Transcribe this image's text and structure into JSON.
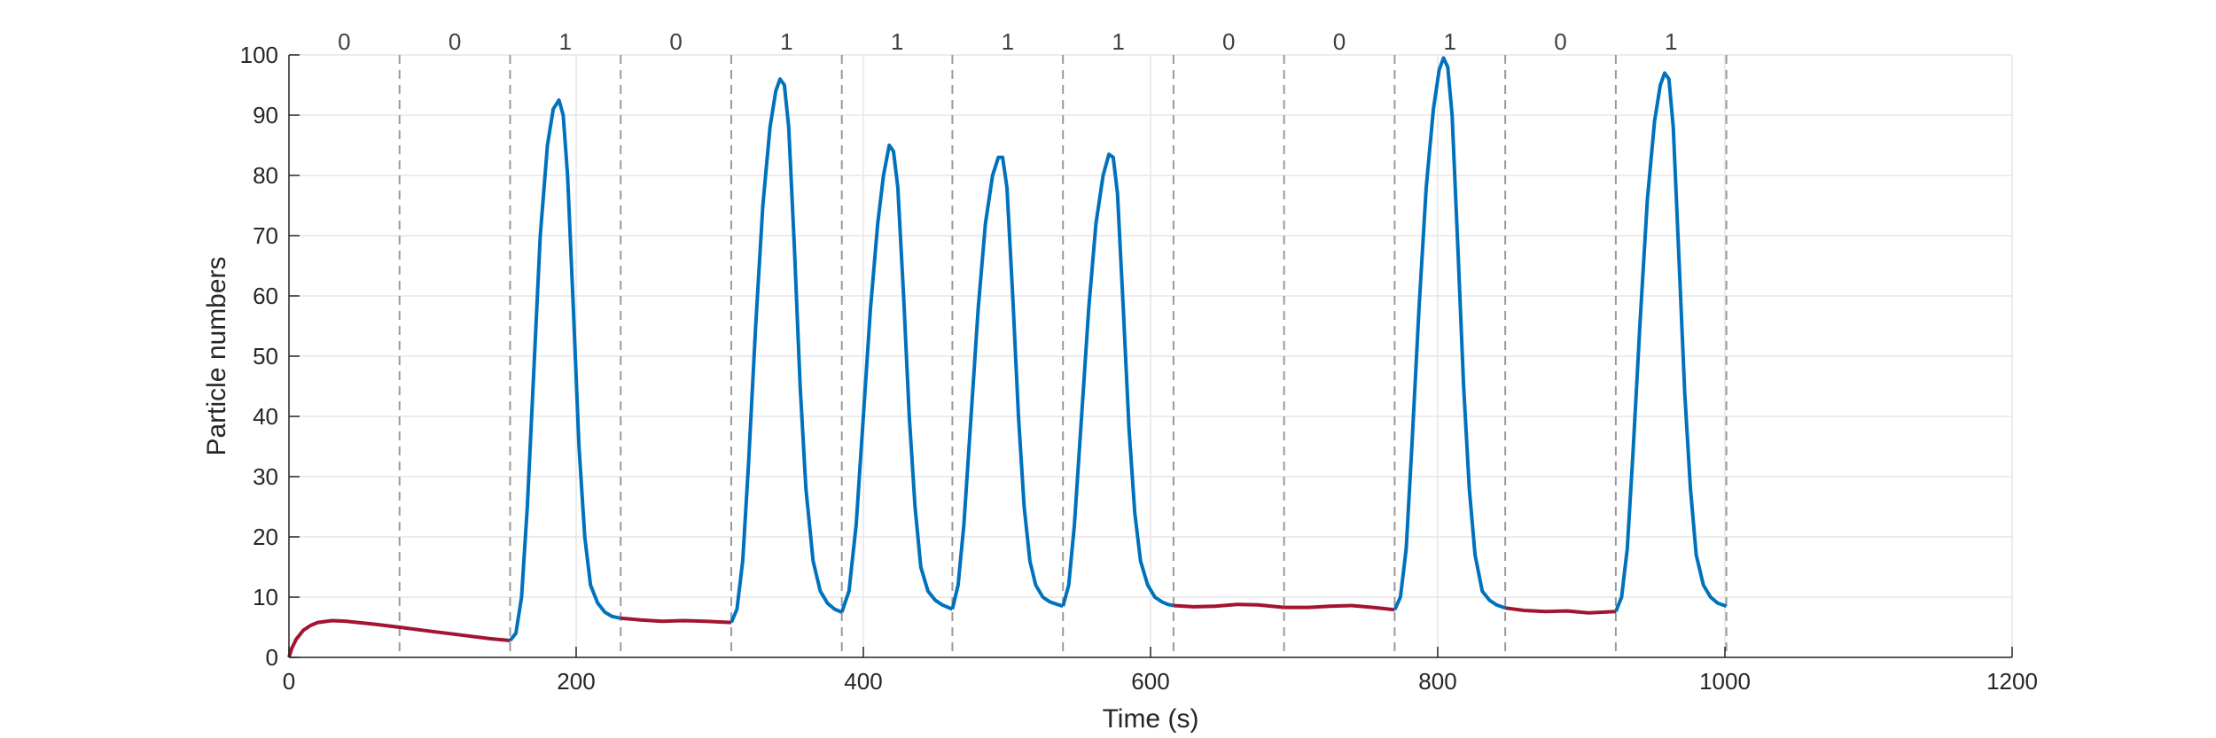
{
  "chart_data": {
    "type": "line",
    "title": "",
    "xlabel": "Time (s)",
    "ylabel": "Particle numbers",
    "xlim": [
      0,
      1200
    ],
    "ylim": [
      0,
      100
    ],
    "xticks": [
      0,
      200,
      400,
      600,
      800,
      1000,
      1200
    ],
    "yticks": [
      0,
      10,
      20,
      30,
      40,
      50,
      60,
      70,
      80,
      90,
      100
    ],
    "grid": true,
    "legend": "none",
    "colors": {
      "bit0": "#A2142F",
      "bit1": "#0072BD",
      "separator": "#9a9a9a"
    },
    "segment_boundaries": [
      0,
      77,
      154,
      231,
      308,
      385,
      462,
      539,
      616,
      693,
      770,
      847,
      924,
      1001
    ],
    "bits": [
      "0",
      "0",
      "1",
      "0",
      "1",
      "1",
      "1",
      "1",
      "0",
      "0",
      "1",
      "0",
      "1"
    ],
    "series": [
      {
        "bit": "0",
        "x": [
          0,
          2,
          5,
          10,
          15,
          20,
          30,
          40,
          60,
          77,
          100,
          120,
          140,
          154
        ],
        "y": [
          0,
          1.5,
          3,
          4.5,
          5.3,
          5.8,
          6.1,
          6.0,
          5.5,
          5.0,
          4.3,
          3.7,
          3.1,
          2.8
        ]
      },
      {
        "bit": "1",
        "x": [
          154,
          158,
          162,
          166,
          170,
          175,
          180,
          184,
          188,
          191,
          194,
          198,
          202,
          206,
          210,
          215,
          220,
          225,
          231
        ],
        "y": [
          2.8,
          4,
          10,
          25,
          45,
          70,
          85,
          91,
          92.5,
          90,
          80,
          58,
          35,
          20,
          12,
          9,
          7.5,
          6.8,
          6.5
        ]
      },
      {
        "bit": "0",
        "x": [
          231,
          245,
          260,
          275,
          290,
          308
        ],
        "y": [
          6.5,
          6.2,
          6.0,
          6.1,
          6.0,
          5.8
        ]
      },
      {
        "bit": "1",
        "x": [
          308,
          312,
          316,
          320,
          325,
          330,
          335,
          339,
          342,
          345,
          348,
          352,
          356,
          360,
          365,
          370,
          375,
          380,
          385
        ],
        "y": [
          5.8,
          8,
          16,
          32,
          55,
          75,
          88,
          94,
          96,
          95,
          88,
          68,
          45,
          28,
          16,
          11,
          9,
          8,
          7.5
        ]
      },
      {
        "bit": "1",
        "x": [
          385,
          390,
          395,
          400,
          405,
          410,
          414,
          418,
          421,
          424,
          428,
          432,
          436,
          440,
          445,
          450,
          455,
          462
        ],
        "y": [
          7.5,
          11,
          22,
          40,
          58,
          72,
          80,
          85,
          84,
          78,
          60,
          40,
          25,
          15,
          11,
          9.5,
          8.7,
          8
        ]
      },
      {
        "bit": "1",
        "x": [
          462,
          466,
          470,
          475,
          480,
          485,
          490,
          494,
          497,
          500,
          504,
          508,
          512,
          516,
          520,
          525,
          530,
          535,
          539
        ],
        "y": [
          8,
          12,
          22,
          40,
          58,
          72,
          80,
          83,
          83,
          78,
          60,
          40,
          25,
          16,
          12,
          10,
          9.2,
          8.8,
          8.5
        ]
      },
      {
        "bit": "1",
        "x": [
          539,
          543,
          547,
          552,
          557,
          562,
          567,
          571,
          574,
          577,
          581,
          585,
          589,
          593,
          598,
          603,
          608,
          612,
          616
        ],
        "y": [
          8.5,
          12,
          22,
          40,
          58,
          72,
          80,
          83.5,
          83,
          77,
          58,
          38,
          24,
          16,
          12,
          10,
          9.2,
          8.8,
          8.6
        ]
      },
      {
        "bit": "0",
        "x": [
          616,
          630,
          645,
          660,
          675,
          693
        ],
        "y": [
          8.6,
          8.4,
          8.5,
          8.8,
          8.7,
          8.3
        ]
      },
      {
        "bit": "0",
        "x": [
          693,
          710,
          725,
          740,
          755,
          770
        ],
        "y": [
          8.3,
          8.3,
          8.5,
          8.6,
          8.3,
          7.9
        ]
      },
      {
        "bit": "1",
        "x": [
          770,
          774,
          778,
          782,
          787,
          792,
          797,
          801,
          804,
          807,
          810,
          814,
          818,
          822,
          826,
          831,
          836,
          841,
          847
        ],
        "y": [
          7.9,
          10,
          18,
          35,
          58,
          78,
          91,
          97.5,
          99.5,
          98,
          90,
          68,
          45,
          28,
          17,
          11,
          9.5,
          8.7,
          8.2
        ]
      },
      {
        "bit": "0",
        "x": [
          847,
          860,
          875,
          890,
          905,
          924
        ],
        "y": [
          8.2,
          7.8,
          7.6,
          7.7,
          7.4,
          7.6
        ]
      },
      {
        "bit": "1",
        "x": [
          924,
          928,
          932,
          936,
          941,
          946,
          951,
          955,
          958,
          961,
          964,
          968,
          972,
          976,
          980,
          985,
          990,
          995,
          1001
        ],
        "y": [
          7.6,
          10,
          18,
          34,
          56,
          76,
          89,
          95,
          97,
          96,
          88,
          66,
          44,
          28,
          17,
          12,
          10,
          9,
          8.5
        ]
      }
    ]
  }
}
